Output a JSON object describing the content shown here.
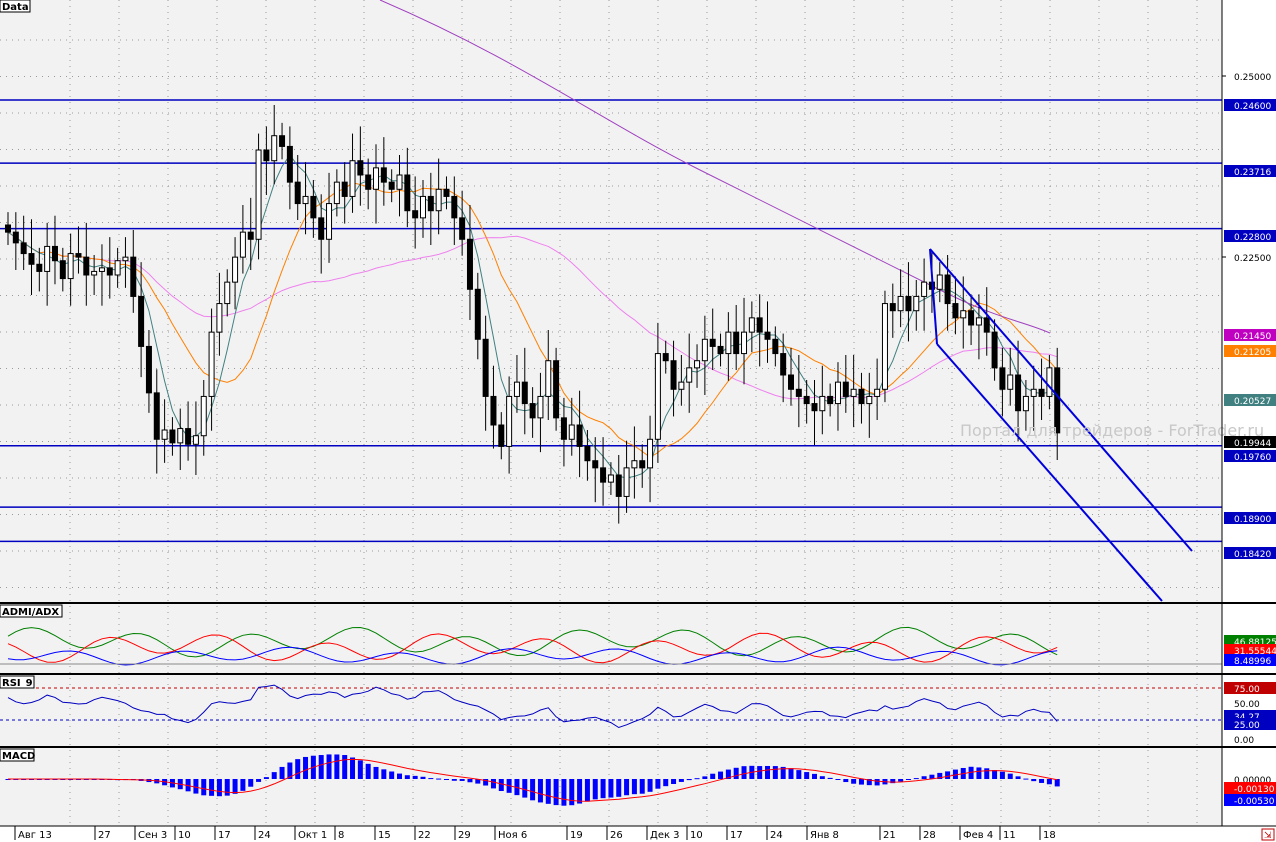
{
  "panes": {
    "main": {
      "label": "Data"
    },
    "adx": {
      "label": "ADMI/ADX",
      "values": [
        "46.88125",
        "31.55544",
        "8.48996"
      ],
      "colors": [
        "#008000",
        "#ff0000",
        "#0000ff"
      ]
    },
    "rsi": {
      "label": "RSI_9",
      "levels": [
        "75.00",
        "50.00",
        "25.00",
        "0.00"
      ],
      "value": "34.27"
    },
    "macd": {
      "label": "MACD",
      "levels": [
        "0.00000",
        "-0.00130",
        "-0.00530"
      ]
    }
  },
  "watermark": "Портал для трейдеров - ForTrader.ru",
  "price_axis": {
    "labels": [
      "0.25000",
      "0.22500"
    ],
    "level_tags": [
      {
        "value": "0.24600",
        "color": "#0000c0"
      },
      {
        "value": "0.23716",
        "color": "#0000c0"
      },
      {
        "value": "0.22800",
        "color": "#0000c0"
      },
      {
        "value": "0.21450",
        "color": "#c000c0"
      },
      {
        "value": "0.21205",
        "color": "#ff8000"
      },
      {
        "value": "0.20527",
        "color": "#408080"
      },
      {
        "value": "0.19944",
        "color": "#000000"
      },
      {
        "value": "0.19760",
        "color": "#0000c0"
      },
      {
        "value": "0.18900",
        "color": "#0000c0"
      },
      {
        "value": "0.18420",
        "color": "#0000c0"
      }
    ]
  },
  "time_axis": [
    "Авг 13",
    "27",
    "Сен 3",
    "10",
    "17",
    "24",
    "Окт 1",
    "8",
    "15",
    "22",
    "29",
    "Ноя 6",
    "19",
    "26",
    "Дек 3",
    "10",
    "17",
    "24",
    "Янв 8",
    "21",
    "28",
    "Фев 4",
    "11",
    "18"
  ],
  "colors": {
    "background": "#f2f2f2",
    "bull": "#ffffff",
    "bear": "#000000",
    "level": "#0000c0",
    "ma_fast": "#408080",
    "ma_mid": "#ff8000",
    "ma_slow": "#ff00ff",
    "ma_long": "#a040c0"
  },
  "chart_data": {
    "type": "candlestick",
    "title": "Data",
    "x_start": "Авг 13",
    "x_end": "18",
    "y_range": [
      0.176,
      0.26
    ],
    "horizontal_levels": [
      0.246,
      0.23716,
      0.228,
      0.1976,
      0.189,
      0.1842
    ],
    "channel": {
      "upper": [
        [
          "28",
          0.2265
        ],
        [
          "future",
          0.1895
        ]
      ],
      "lower": [
        [
          "28",
          0.2138
        ],
        [
          "future",
          0.1808
        ]
      ]
    },
    "closes": [
      0.2275,
      0.226,
      0.2245,
      0.223,
      0.222,
      0.2255,
      0.2235,
      0.221,
      0.2245,
      0.224,
      0.2215,
      0.222,
      0.2225,
      0.2215,
      0.2235,
      0.224,
      0.2185,
      0.2115,
      0.205,
      0.1985,
      0.1998,
      0.198,
      0.2,
      0.1978,
      0.199,
      0.2045,
      0.2135,
      0.2175,
      0.2205,
      0.224,
      0.2275,
      0.2265,
      0.239,
      0.2375,
      0.241,
      0.2395,
      0.2345,
      0.2315,
      0.2325,
      0.2295,
      0.2265,
      0.2315,
      0.2345,
      0.2325,
      0.2375,
      0.2355,
      0.2335,
      0.2365,
      0.2345,
      0.2335,
      0.2355,
      0.2305,
      0.2295,
      0.2325,
      0.2305,
      0.2335,
      0.2325,
      0.2295,
      0.2265,
      0.2195,
      0.2125,
      0.2045,
      0.2005,
      0.1975,
      0.2045,
      0.2065,
      0.2035,
      0.2015,
      0.2045,
      0.2095,
      0.2015,
      0.1985,
      0.2005,
      0.1975,
      0.1955,
      0.1945,
      0.1925,
      0.1935,
      0.1905,
      0.1945,
      0.1955,
      0.1945,
      0.1985,
      0.2105,
      0.2095,
      0.2055,
      0.2065,
      0.2085,
      0.2095,
      0.2125,
      0.2115,
      0.2105,
      0.2135,
      0.2105,
      0.2135,
      0.2155,
      0.2135,
      0.2125,
      0.2105,
      0.2075,
      0.2055,
      0.2045,
      0.2035,
      0.2025,
      0.2045,
      0.2035,
      0.2065,
      0.2045,
      0.2055,
      0.2035,
      0.2045,
      0.2055,
      0.2175,
      0.2165,
      0.2185,
      0.2165,
      0.2185,
      0.2205,
      0.2195,
      0.2215,
      0.2175,
      0.2155,
      0.2165,
      0.2145,
      0.2155,
      0.2135,
      0.2085,
      0.2055,
      0.2075,
      0.2025,
      0.2045,
      0.2055,
      0.2045,
      0.2085,
      0.1994
    ]
  }
}
